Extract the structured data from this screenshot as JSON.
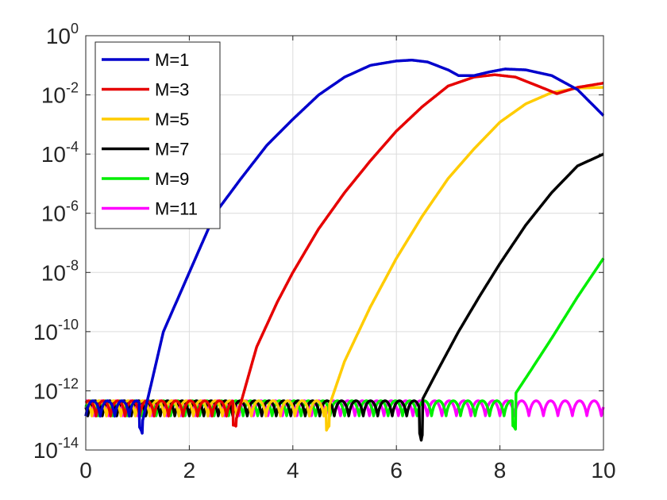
{
  "chart_data": {
    "type": "line",
    "title": "",
    "xlabel": "",
    "ylabel": "",
    "xlim": [
      0,
      10
    ],
    "ylim": [
      1e-14,
      1
    ],
    "yscale": "log",
    "grid": true,
    "legend_position": "top-left",
    "x_ticks": [
      {
        "value": 0,
        "label": "0"
      },
      {
        "value": 2,
        "label": "2"
      },
      {
        "value": 4,
        "label": "4"
      },
      {
        "value": 6,
        "label": "6"
      },
      {
        "value": 8,
        "label": "8"
      },
      {
        "value": 10,
        "label": "10"
      }
    ],
    "y_ticks": [
      {
        "value": 1e-14,
        "base": "10",
        "exp": "-14"
      },
      {
        "value": 1e-12,
        "base": "10",
        "exp": "-12"
      },
      {
        "value": 1e-10,
        "base": "10",
        "exp": "-10"
      },
      {
        "value": 1e-08,
        "base": "10",
        "exp": "-8"
      },
      {
        "value": 1e-06,
        "base": "10",
        "exp": "-6"
      },
      {
        "value": 0.0001,
        "base": "10",
        "exp": "-4"
      },
      {
        "value": 0.01,
        "base": "10",
        "exp": "-2"
      },
      {
        "value": 1,
        "base": "10",
        "exp": "0"
      }
    ],
    "noise_floor": 2e-13,
    "series": [
      {
        "name": "M=1",
        "color": "#0000CC",
        "onset": 1.1,
        "points": [
          [
            1.1,
            1e-13
          ],
          [
            1.5,
            1e-10
          ],
          [
            2,
            1e-08
          ],
          [
            2.5,
            1e-06
          ],
          [
            3,
            1.5e-05
          ],
          [
            3.5,
            0.0002
          ],
          [
            4,
            0.0015
          ],
          [
            4.5,
            0.01
          ],
          [
            5,
            0.04
          ],
          [
            5.5,
            0.1
          ],
          [
            6,
            0.14
          ],
          [
            6.3,
            0.15
          ],
          [
            6.6,
            0.13
          ],
          [
            7,
            0.07
          ],
          [
            7.2,
            0.045
          ],
          [
            7.5,
            0.045
          ],
          [
            7.8,
            0.06
          ],
          [
            8.1,
            0.075
          ],
          [
            8.5,
            0.07
          ],
          [
            9,
            0.045
          ],
          [
            9.5,
            0.015
          ],
          [
            10,
            0.002
          ]
        ]
      },
      {
        "name": "M=3",
        "color": "#E60000",
        "onset": 2.9,
        "points": [
          [
            2.9,
            1e-13
          ],
          [
            3.3,
            3e-11
          ],
          [
            3.7,
            1e-09
          ],
          [
            4,
            1e-08
          ],
          [
            4.5,
            3e-07
          ],
          [
            5,
            5e-06
          ],
          [
            5.5,
            6e-05
          ],
          [
            6,
            0.0006
          ],
          [
            6.5,
            0.004
          ],
          [
            7,
            0.02
          ],
          [
            7.5,
            0.04
          ],
          [
            7.9,
            0.048
          ],
          [
            8.3,
            0.04
          ],
          [
            8.8,
            0.018
          ],
          [
            9.1,
            0.011
          ],
          [
            9.5,
            0.018
          ],
          [
            10,
            0.025
          ]
        ]
      },
      {
        "name": "M=5",
        "color": "#FFCC00",
        "onset": 4.7,
        "points": [
          [
            4.7,
            3e-13
          ],
          [
            5,
            1e-11
          ],
          [
            5.5,
            7e-10
          ],
          [
            6,
            3e-08
          ],
          [
            6.5,
            8e-07
          ],
          [
            7,
            1.5e-05
          ],
          [
            7.5,
            0.00015
          ],
          [
            8,
            0.0012
          ],
          [
            8.5,
            0.005
          ],
          [
            9,
            0.012
          ],
          [
            9.5,
            0.017
          ],
          [
            10,
            0.018
          ]
        ]
      },
      {
        "name": "M=7",
        "color": "#000000",
        "onset": 6.5,
        "points": [
          [
            6.5,
            5e-13
          ],
          [
            6.8,
            5e-12
          ],
          [
            7.2,
            1e-10
          ],
          [
            7.6,
            1.5e-09
          ],
          [
            8,
            2e-08
          ],
          [
            8.5,
            4e-07
          ],
          [
            9,
            5e-06
          ],
          [
            9.5,
            4e-05
          ],
          [
            10,
            0.0001
          ]
        ]
      },
      {
        "name": "M=9",
        "color": "#00EE00",
        "onset": 8.3,
        "points": [
          [
            8.3,
            8e-13
          ],
          [
            8.6,
            5e-12
          ],
          [
            9,
            6e-11
          ],
          [
            9.5,
            1.5e-09
          ],
          [
            10,
            3e-08
          ]
        ]
      },
      {
        "name": "M=11",
        "color": "#FF00FF",
        "onset": null,
        "points": []
      }
    ]
  }
}
